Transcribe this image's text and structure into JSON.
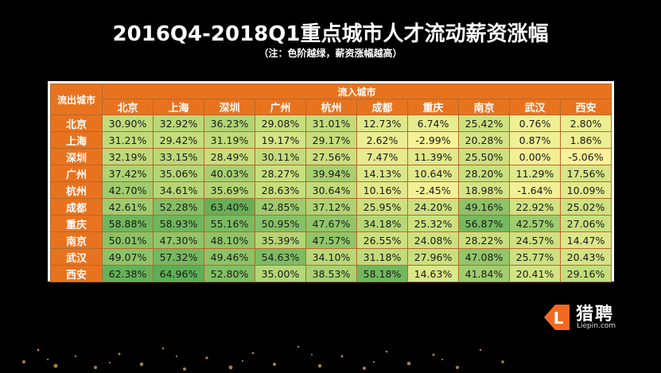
{
  "title": "2016Q4-2018Q1重点城市人才流动薪资涨幅",
  "subtitle": "（注：色阶越绿，薪资涨幅越高）",
  "table": {
    "corner_label": "流出城市",
    "inbound_label": "流入城市",
    "columns": [
      "北京",
      "上海",
      "深圳",
      "广州",
      "杭州",
      "成都",
      "重庆",
      "南京",
      "武汉",
      "西安"
    ],
    "rows": [
      {
        "city": "北京",
        "values": [
          "30.90%",
          "32.92%",
          "36.23%",
          "29.08%",
          "31.01%",
          "12.73%",
          "6.74%",
          "25.42%",
          "0.76%",
          "2.80%"
        ]
      },
      {
        "city": "上海",
        "values": [
          "31.21%",
          "29.42%",
          "31.19%",
          "19.17%",
          "29.17%",
          "2.62%",
          "-2.99%",
          "20.28%",
          "0.87%",
          "1.86%"
        ]
      },
      {
        "city": "深圳",
        "values": [
          "32.19%",
          "33.15%",
          "28.49%",
          "30.11%",
          "27.56%",
          "7.47%",
          "11.39%",
          "25.50%",
          "0.00%",
          "-5.06%"
        ]
      },
      {
        "city": "广州",
        "values": [
          "37.42%",
          "35.06%",
          "40.03%",
          "28.27%",
          "39.94%",
          "14.13%",
          "10.64%",
          "28.20%",
          "11.29%",
          "17.56%"
        ]
      },
      {
        "city": "杭州",
        "values": [
          "42.70%",
          "34.61%",
          "35.69%",
          "28.63%",
          "30.64%",
          "10.16%",
          "-2.45%",
          "18.98%",
          "-1.64%",
          "10.09%"
        ]
      },
      {
        "city": "成都",
        "values": [
          "42.61%",
          "52.28%",
          "63.40%",
          "42.85%",
          "37.12%",
          "25.95%",
          "24.20%",
          "49.16%",
          "22.92%",
          "25.02%"
        ]
      },
      {
        "city": "重庆",
        "values": [
          "58.88%",
          "58.93%",
          "55.16%",
          "50.95%",
          "47.67%",
          "34.18%",
          "25.32%",
          "56.87%",
          "42.57%",
          "27.06%"
        ]
      },
      {
        "city": "南京",
        "values": [
          "50.01%",
          "47.30%",
          "48.10%",
          "35.39%",
          "47.57%",
          "26.55%",
          "24.08%",
          "28.22%",
          "24.57%",
          "14.47%"
        ]
      },
      {
        "city": "武汉",
        "values": [
          "49.07%",
          "57.32%",
          "49.46%",
          "54.63%",
          "34.10%",
          "31.18%",
          "27.96%",
          "47.08%",
          "25.77%",
          "20.43%"
        ]
      },
      {
        "city": "西安",
        "values": [
          "62.38%",
          "64.96%",
          "52.80%",
          "35.00%",
          "38.53%",
          "58.18%",
          "14.63%",
          "41.84%",
          "20.41%",
          "29.16%"
        ]
      }
    ]
  },
  "logo": {
    "name": "猎聘",
    "site": "Liepin.com",
    "badge_letter": "L"
  },
  "colors": {
    "header_orange": "#e8731f",
    "scale_low": "#f8f39a",
    "scale_mid": "#c9df7d",
    "scale_high": "#5fae56"
  }
}
